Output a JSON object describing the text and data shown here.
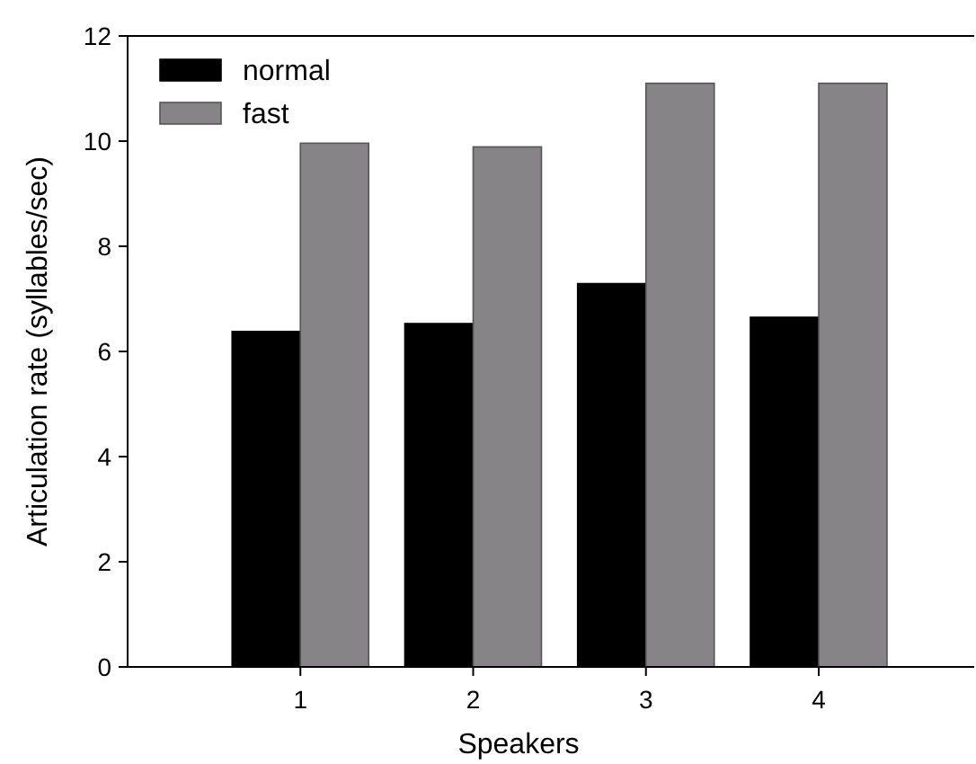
{
  "chart_data": {
    "type": "bar",
    "xlabel": "Speakers",
    "ylabel": "Articulation rate (syllables/sec)",
    "categories": [
      "1",
      "2",
      "3",
      "4"
    ],
    "series": [
      {
        "name": "normal",
        "color": "#000000",
        "values": [
          6.38,
          6.53,
          7.29,
          6.65
        ]
      },
      {
        "name": "fast",
        "color": "#868486",
        "values": [
          9.96,
          9.89,
          11.1,
          11.1
        ]
      }
    ],
    "ylim": [
      0,
      12
    ],
    "yticks": [
      0,
      2,
      4,
      6,
      8,
      10,
      12
    ],
    "grid": false,
    "legend": "top left"
  }
}
